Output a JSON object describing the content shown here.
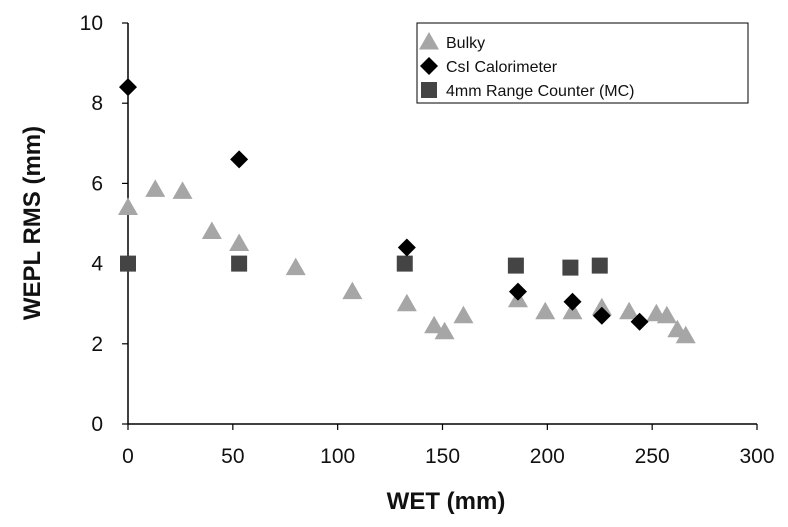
{
  "chart_data": {
    "type": "scatter",
    "title": "",
    "xlabel": "WET (mm)",
    "ylabel": "WEPL RMS (mm)",
    "xlim": [
      0,
      300
    ],
    "ylim": [
      0,
      10
    ],
    "xticks": [
      0,
      50,
      100,
      150,
      200,
      250,
      300
    ],
    "yticks": [
      0,
      2,
      4,
      6,
      8,
      10
    ],
    "grid": false,
    "legend_position": "top-right",
    "series": [
      {
        "name": "Bulky",
        "marker": "triangle",
        "color": "#a6a6a6",
        "points": [
          [
            0,
            5.4
          ],
          [
            13,
            5.85
          ],
          [
            26,
            5.8
          ],
          [
            40,
            4.8
          ],
          [
            53,
            4.5
          ],
          [
            80,
            3.9
          ],
          [
            107,
            3.3
          ],
          [
            133,
            3.0
          ],
          [
            146,
            2.45
          ],
          [
            151,
            2.3
          ],
          [
            160,
            2.7
          ],
          [
            186,
            3.1
          ],
          [
            199,
            2.8
          ],
          [
            212,
            2.8
          ],
          [
            226,
            2.9
          ],
          [
            239,
            2.8
          ],
          [
            252,
            2.75
          ],
          [
            257,
            2.7
          ],
          [
            262,
            2.35
          ],
          [
            266,
            2.2
          ]
        ]
      },
      {
        "name": "CsI Calorimeter",
        "marker": "diamond",
        "color": "#000000",
        "points": [
          [
            0,
            8.4
          ],
          [
            53,
            6.6
          ],
          [
            133,
            4.4
          ],
          [
            186,
            3.3
          ],
          [
            212,
            3.05
          ],
          [
            226,
            2.7
          ],
          [
            244,
            2.55
          ]
        ]
      },
      {
        "name": "4mm Range Counter (MC)",
        "marker": "square",
        "color": "#444444",
        "points": [
          [
            0,
            4.0
          ],
          [
            53,
            4.0
          ],
          [
            132,
            4.0
          ],
          [
            185,
            3.95
          ],
          [
            211,
            3.9
          ],
          [
            225,
            3.95
          ]
        ]
      }
    ]
  }
}
